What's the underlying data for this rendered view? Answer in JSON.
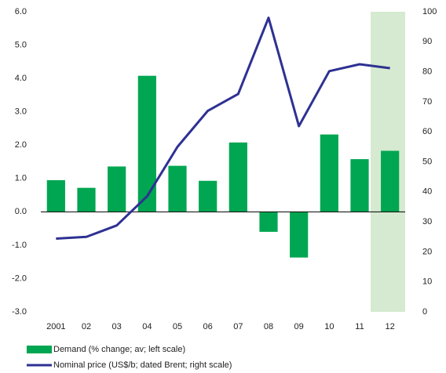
{
  "chart_data": {
    "type": "bar_line",
    "categories": [
      "2001",
      "02",
      "03",
      "04",
      "05",
      "06",
      "07",
      "08",
      "09",
      "10",
      "11",
      "12"
    ],
    "series": [
      {
        "name": "Demand (% change; av; left scale)",
        "color": "#00a651",
        "type": "bar",
        "values": [
          0.95,
          0.72,
          1.36,
          4.08,
          1.38,
          0.93,
          2.08,
          -0.6,
          -1.37,
          2.32,
          1.58,
          1.83
        ]
      },
      {
        "name": "Nominal price (US$/b; dated Brent; right scale)",
        "color": "#2e3192",
        "type": "line",
        "axis": "y2",
        "values": [
          24.4,
          25.0,
          28.8,
          38.5,
          55.0,
          67.0,
          72.6,
          98.0,
          61.9,
          80.2,
          82.5,
          81.2
        ]
      }
    ],
    "ylim": [
      -3,
      6
    ],
    "yticks": [
      {
        "value": -3,
        "label": "-3.0"
      },
      {
        "value": -2,
        "label": "-2.0"
      },
      {
        "value": -1,
        "label": "-1.0"
      },
      {
        "value": 0,
        "label": "0.0"
      },
      {
        "value": 1,
        "label": "1.0"
      },
      {
        "value": 2,
        "label": "2.0"
      },
      {
        "value": 3,
        "label": "3.0"
      },
      {
        "value": 4,
        "label": "4.0"
      },
      {
        "value": 5,
        "label": "5.0"
      },
      {
        "value": 6,
        "label": "6.0"
      }
    ],
    "y2lim": [
      0,
      100
    ],
    "y2ticks": [
      0,
      10,
      20,
      30,
      40,
      50,
      60,
      70,
      80,
      90,
      100
    ],
    "legend": "bottom-left"
  }
}
